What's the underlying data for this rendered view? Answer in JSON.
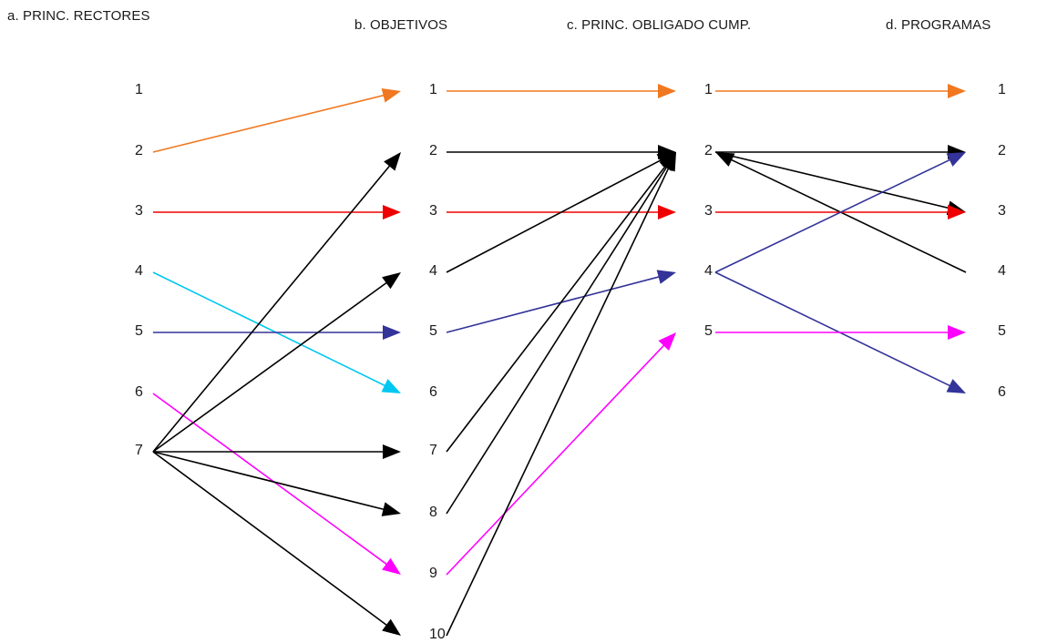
{
  "headers": {
    "a": "a. PRINC. RECTORES",
    "b": "b. OBJETIVOS",
    "c": "c. PRINC.  OBLIGADO CUMP.",
    "d": "d. PROGRAMAS"
  },
  "columns": {
    "a": [
      "1",
      "2",
      "3",
      "4",
      "5",
      "6",
      "7"
    ],
    "b": [
      "1",
      "2",
      "3",
      "4",
      "5",
      "6",
      "7",
      "8",
      "9",
      "10"
    ],
    "c": [
      "1",
      "2",
      "3",
      "4",
      "5"
    ],
    "d": [
      "1",
      "2",
      "3",
      "4",
      "5",
      "6"
    ]
  },
  "colors": {
    "orange": "#F07820",
    "red": "#EE0000",
    "cyan": "#00C8F0",
    "navy": "#333399",
    "magenta": "#FF00FF",
    "black": "#000000"
  },
  "connections": [
    {
      "from": "a2",
      "to": "b1",
      "color": "orange"
    },
    {
      "from": "a3",
      "to": "b3",
      "color": "red"
    },
    {
      "from": "a4",
      "to": "b6",
      "color": "cyan"
    },
    {
      "from": "a5",
      "to": "b5",
      "color": "navy"
    },
    {
      "from": "a6",
      "to": "b9",
      "color": "magenta"
    },
    {
      "from": "a7",
      "to": "b2",
      "color": "black"
    },
    {
      "from": "a7",
      "to": "b4",
      "color": "black"
    },
    {
      "from": "a7",
      "to": "b7",
      "color": "black"
    },
    {
      "from": "a7",
      "to": "b8",
      "color": "black"
    },
    {
      "from": "a7",
      "to": "b10",
      "color": "black"
    },
    {
      "from": "b1",
      "to": "c1",
      "color": "orange"
    },
    {
      "from": "b2",
      "to": "c2",
      "color": "black"
    },
    {
      "from": "b3",
      "to": "c3",
      "color": "red"
    },
    {
      "from": "b4",
      "to": "c2",
      "color": "black"
    },
    {
      "from": "b5",
      "to": "c4",
      "color": "navy"
    },
    {
      "from": "b7",
      "to": "c2",
      "color": "black"
    },
    {
      "from": "b8",
      "to": "c2",
      "color": "black"
    },
    {
      "from": "b9",
      "to": "c5",
      "color": "magenta"
    },
    {
      "from": "b10",
      "to": "c2",
      "color": "black"
    },
    {
      "from": "c1",
      "to": "d1",
      "color": "orange"
    },
    {
      "from": "c2",
      "to": "d2",
      "color": "black"
    },
    {
      "from": "c2",
      "to": "d3",
      "color": "black"
    },
    {
      "from": "d4",
      "to": "c2",
      "color": "black"
    },
    {
      "from": "c3",
      "to": "d3",
      "color": "red"
    },
    {
      "from": "c4",
      "to": "d2",
      "color": "navy"
    },
    {
      "from": "c4",
      "to": "d6",
      "color": "navy"
    },
    {
      "from": "c5",
      "to": "d5",
      "color": "magenta"
    }
  ]
}
